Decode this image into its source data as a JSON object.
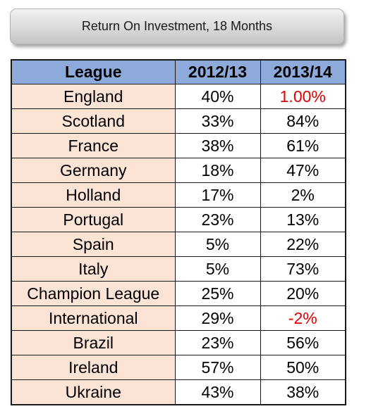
{
  "title": "Return On Investment, 18 Months",
  "colors": {
    "header_bg": "#8eaadb",
    "league_bg": "#fbe4d5",
    "highlight_text": "#e00000"
  },
  "table": {
    "headers": [
      "League",
      "2012/13",
      "2013/14"
    ],
    "rows": [
      {
        "league": "England",
        "y2012_13": "40%",
        "y2013_14": "1.00%",
        "y2013_14_red": true
      },
      {
        "league": "Scotland",
        "y2012_13": "33%",
        "y2013_14": "84%",
        "y2013_14_red": false
      },
      {
        "league": "France",
        "y2012_13": "38%",
        "y2013_14": "61%",
        "y2013_14_red": false
      },
      {
        "league": "Germany",
        "y2012_13": "18%",
        "y2013_14": "47%",
        "y2013_14_red": false
      },
      {
        "league": "Holland",
        "y2012_13": "17%",
        "y2013_14": "2%",
        "y2013_14_red": false
      },
      {
        "league": "Portugal",
        "y2012_13": "23%",
        "y2013_14": "13%",
        "y2013_14_red": false
      },
      {
        "league": "Spain",
        "y2012_13": "5%",
        "y2013_14": "22%",
        "y2013_14_red": false
      },
      {
        "league": "Italy",
        "y2012_13": "5%",
        "y2013_14": "73%",
        "y2013_14_red": false
      },
      {
        "league": "Champion League",
        "y2012_13": "25%",
        "y2013_14": "20%",
        "y2013_14_red": false
      },
      {
        "league": "International",
        "y2012_13": "29%",
        "y2013_14": "-2%",
        "y2013_14_red": true
      },
      {
        "league": "Brazil",
        "y2012_13": "23%",
        "y2013_14": "56%",
        "y2013_14_red": false
      },
      {
        "league": "Ireland",
        "y2012_13": "57%",
        "y2013_14": "50%",
        "y2013_14_red": false
      },
      {
        "league": "Ukraine",
        "y2012_13": "43%",
        "y2013_14": "38%",
        "y2013_14_red": false
      }
    ]
  }
}
